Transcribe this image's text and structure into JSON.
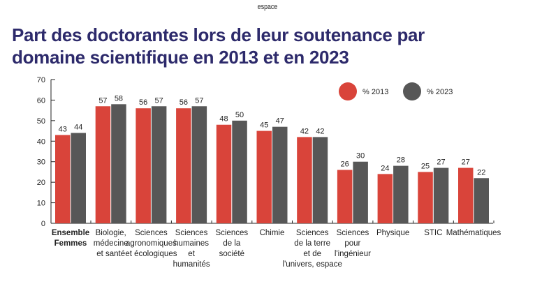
{
  "top_note": "espace",
  "chart_data": {
    "type": "bar",
    "title": "Part des doctorantes lors de leur soutenance par domaine scientifique en 2013 et en 2023",
    "categories": [
      [
        "Ensemble",
        "Femmes"
      ],
      [
        "Biologie,",
        "médecine",
        "et santé"
      ],
      [
        "Sciences",
        "agronomiques",
        "et écologiques"
      ],
      [
        "Sciences",
        "humaines",
        "et",
        "humanités"
      ],
      [
        "Sciences",
        "de la",
        "société"
      ],
      [
        "Chimie"
      ],
      [
        "Sciences",
        "de la terre",
        "et de",
        "l'univers, espace"
      ],
      [
        "Sciences",
        "pour",
        "l'ingénieur"
      ],
      [
        "Physique"
      ],
      [
        "STIC"
      ],
      [
        "Mathématiques"
      ]
    ],
    "series": [
      {
        "name": "% 2013",
        "color": "#d9443a",
        "values": [
          43,
          57,
          56,
          56,
          48,
          45,
          42,
          26,
          24,
          25,
          27
        ]
      },
      {
        "name": "% 2023",
        "color": "#575757",
        "values": [
          44,
          58,
          57,
          57,
          50,
          47,
          42,
          30,
          28,
          27,
          22
        ]
      }
    ],
    "yticks": [
      0,
      10,
      20,
      30,
      40,
      50,
      60,
      70
    ],
    "ylim": [
      0,
      70
    ],
    "grid": false,
    "legend": "top-right",
    "bold_first_category": true
  }
}
